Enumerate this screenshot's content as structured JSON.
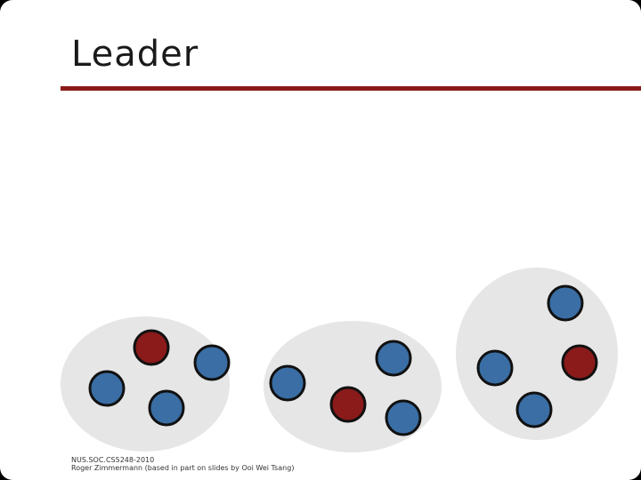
{
  "slide": {
    "title": "Leader",
    "footer_line1": "NUS.SOC.CS5248-2010",
    "footer_line2": "Roger Zimmermann (based in part on slides by Ooi Wei Tsang)"
  },
  "colors": {
    "accent_rule": "#8b1a1a",
    "group_background": "#e6e6e6",
    "leader_node": "#8b1a1a",
    "member_node": "#3a6ea5",
    "node_outline": "#111111"
  },
  "groups": [
    {
      "name": "group-1",
      "nodes": [
        {
          "role": "leader"
        },
        {
          "role": "member"
        },
        {
          "role": "member"
        },
        {
          "role": "member"
        }
      ]
    },
    {
      "name": "group-2",
      "nodes": [
        {
          "role": "member"
        },
        {
          "role": "member"
        },
        {
          "role": "leader"
        },
        {
          "role": "member"
        }
      ]
    },
    {
      "name": "group-3",
      "nodes": [
        {
          "role": "member"
        },
        {
          "role": "member"
        },
        {
          "role": "leader"
        },
        {
          "role": "member"
        }
      ]
    }
  ]
}
